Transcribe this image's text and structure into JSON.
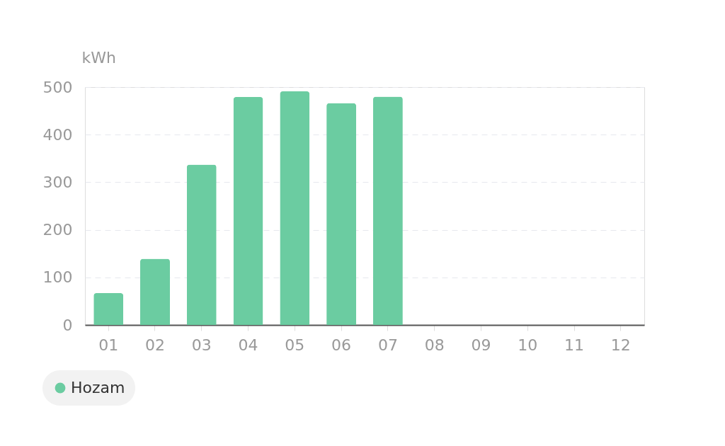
{
  "chart_data": {
    "type": "bar",
    "ylabel": "kWh",
    "categories": [
      "01",
      "02",
      "03",
      "04",
      "05",
      "06",
      "07",
      "08",
      "09",
      "10",
      "11",
      "12"
    ],
    "series": [
      {
        "name": "Hozam",
        "color": "#6bcca1",
        "values": [
          67,
          139,
          337,
          479,
          491,
          466,
          480,
          null,
          null,
          null,
          null,
          null
        ]
      }
    ],
    "ylim": [
      0,
      500
    ],
    "yticks": [
      0,
      100,
      200,
      300,
      400,
      500
    ],
    "grid": "y",
    "legend": "bottom left"
  }
}
